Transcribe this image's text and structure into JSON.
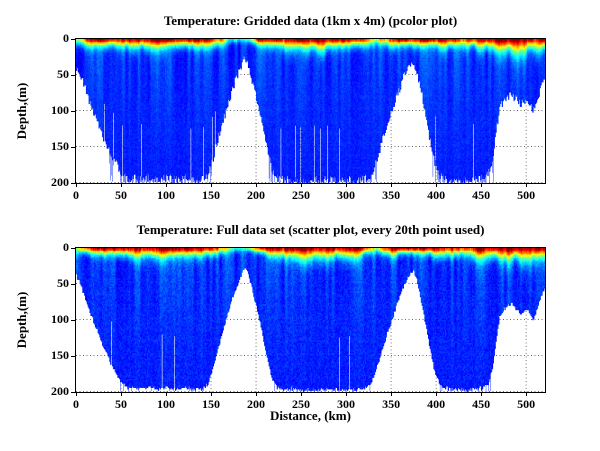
{
  "figure": {
    "background": "#ffffff",
    "frame_color": "#000000",
    "grid_dot_color": "#3a3a3a"
  },
  "text": {
    "xlabel": "Distance, (km)"
  },
  "chart_data": [
    {
      "type": "pcolor",
      "title": "Temperature: Gridded data (1km x 4m) (pcolor plot)",
      "ylabel": "Depth,(m)",
      "xlim": [
        0,
        521
      ],
      "ylim": [
        0,
        200
      ],
      "y_inverted": true,
      "grid": "dotted",
      "legend": "none",
      "colormap": "jet",
      "xticks": [
        0,
        50,
        100,
        150,
        200,
        250,
        300,
        350,
        400,
        450,
        500
      ],
      "yticks": [
        0,
        50,
        100,
        150,
        200
      ],
      "deep_temp": 0.18,
      "seed": 11,
      "bottom_jitter_m": 6,
      "spike_rate": 0.42,
      "gap_rate": 0.05,
      "cell_noise": 0.025,
      "bathymetry_km_m": [
        [
          0,
          38
        ],
        [
          4,
          48
        ],
        [
          8,
          62
        ],
        [
          14,
          85
        ],
        [
          20,
          105
        ],
        [
          26,
          122
        ],
        [
          32,
          142
        ],
        [
          38,
          158
        ],
        [
          44,
          172
        ],
        [
          50,
          185
        ],
        [
          56,
          193
        ],
        [
          62,
          190
        ],
        [
          70,
          194
        ],
        [
          80,
          191
        ],
        [
          90,
          195
        ],
        [
          100,
          192
        ],
        [
          110,
          195
        ],
        [
          120,
          192
        ],
        [
          130,
          195
        ],
        [
          140,
          193
        ],
        [
          146,
          188
        ],
        [
          152,
          165
        ],
        [
          158,
          135
        ],
        [
          164,
          108
        ],
        [
          170,
          82
        ],
        [
          176,
          58
        ],
        [
          181,
          42
        ],
        [
          185,
          30
        ],
        [
          188,
          27
        ],
        [
          191,
          35
        ],
        [
          195,
          55
        ],
        [
          200,
          80
        ],
        [
          205,
          108
        ],
        [
          210,
          140
        ],
        [
          214,
          165
        ],
        [
          218,
          182
        ],
        [
          223,
          192
        ],
        [
          230,
          195
        ],
        [
          240,
          193
        ],
        [
          250,
          196
        ],
        [
          260,
          194
        ],
        [
          270,
          196
        ],
        [
          280,
          194
        ],
        [
          290,
          196
        ],
        [
          300,
          194
        ],
        [
          310,
          196
        ],
        [
          318,
          194
        ],
        [
          326,
          190
        ],
        [
          332,
          172
        ],
        [
          338,
          148
        ],
        [
          344,
          122
        ],
        [
          350,
          100
        ],
        [
          356,
          78
        ],
        [
          362,
          56
        ],
        [
          367,
          42
        ],
        [
          371,
          33
        ],
        [
          374,
          30
        ],
        [
          377,
          38
        ],
        [
          381,
          60
        ],
        [
          385,
          85
        ],
        [
          389,
          112
        ],
        [
          393,
          140
        ],
        [
          397,
          165
        ],
        [
          401,
          182
        ],
        [
          406,
          192
        ],
        [
          415,
          195
        ],
        [
          425,
          193
        ],
        [
          435,
          196
        ],
        [
          445,
          194
        ],
        [
          452,
          192
        ],
        [
          458,
          185
        ],
        [
          463,
          160
        ],
        [
          467,
          120
        ],
        [
          470,
          95
        ],
        [
          474,
          85
        ],
        [
          478,
          80
        ],
        [
          483,
          76
        ],
        [
          488,
          82
        ],
        [
          493,
          90
        ],
        [
          498,
          84
        ],
        [
          503,
          88
        ],
        [
          507,
          98
        ],
        [
          511,
          85
        ],
        [
          515,
          70
        ],
        [
          518,
          60
        ],
        [
          521,
          52
        ]
      ],
      "surface_temp_km_t": [
        [
          0,
          0.52
        ],
        [
          6,
          0.62
        ],
        [
          12,
          0.88
        ],
        [
          20,
          0.95
        ],
        [
          40,
          0.92
        ],
        [
          60,
          0.95
        ],
        [
          90,
          0.97
        ],
        [
          120,
          0.95
        ],
        [
          150,
          0.9
        ],
        [
          160,
          0.75
        ],
        [
          168,
          0.5
        ],
        [
          178,
          0.4
        ],
        [
          186,
          0.38
        ],
        [
          194,
          0.55
        ],
        [
          202,
          0.85
        ],
        [
          210,
          0.92
        ],
        [
          225,
          0.95
        ],
        [
          250,
          0.97
        ],
        [
          270,
          0.98
        ],
        [
          295,
          0.97
        ],
        [
          315,
          0.95
        ],
        [
          325,
          0.7
        ],
        [
          333,
          0.52
        ],
        [
          340,
          0.75
        ],
        [
          350,
          0.9
        ],
        [
          365,
          0.92
        ],
        [
          375,
          0.9
        ],
        [
          385,
          0.92
        ],
        [
          400,
          0.95
        ],
        [
          415,
          0.9
        ],
        [
          428,
          0.8
        ],
        [
          435,
          0.85
        ],
        [
          450,
          0.95
        ],
        [
          465,
          0.97
        ],
        [
          480,
          0.98
        ],
        [
          495,
          0.97
        ],
        [
          510,
          0.96
        ],
        [
          521,
          0.95
        ]
      ],
      "warm_layer_depth_km_m": [
        [
          0,
          6
        ],
        [
          15,
          8
        ],
        [
          30,
          7
        ],
        [
          60,
          9
        ],
        [
          90,
          10
        ],
        [
          120,
          9
        ],
        [
          150,
          7
        ],
        [
          170,
          5
        ],
        [
          185,
          4
        ],
        [
          200,
          6
        ],
        [
          215,
          8
        ],
        [
          235,
          11
        ],
        [
          260,
          13
        ],
        [
          285,
          12
        ],
        [
          300,
          10
        ],
        [
          320,
          8
        ],
        [
          335,
          6
        ],
        [
          350,
          8
        ],
        [
          370,
          7
        ],
        [
          390,
          8
        ],
        [
          410,
          9
        ],
        [
          430,
          8
        ],
        [
          450,
          10
        ],
        [
          470,
          13
        ],
        [
          490,
          14
        ],
        [
          505,
          13
        ],
        [
          521,
          12
        ]
      ]
    },
    {
      "type": "scatter",
      "title": "Temperature: Full data set (scatter plot, every 20th point used)",
      "ylabel": "Depth,(m)",
      "xlim": [
        0,
        521
      ],
      "ylim": [
        0,
        200
      ],
      "y_inverted": true,
      "grid": "dotted",
      "legend": "none",
      "colormap": "jet",
      "xticks": [
        0,
        50,
        100,
        150,
        200,
        250,
        300,
        350,
        400,
        450,
        500
      ],
      "yticks": [
        0,
        50,
        100,
        150,
        200
      ],
      "deep_temp": 0.18,
      "seed": 97,
      "bottom_jitter_m": 2.5,
      "spike_rate": 0.1,
      "gap_rate": 0.02,
      "cell_noise": 0.035,
      "bathymetry_km_m": [
        [
          0,
          38
        ],
        [
          4,
          48
        ],
        [
          8,
          62
        ],
        [
          14,
          85
        ],
        [
          20,
          105
        ],
        [
          26,
          122
        ],
        [
          32,
          142
        ],
        [
          38,
          158
        ],
        [
          44,
          172
        ],
        [
          50,
          185
        ],
        [
          56,
          193
        ],
        [
          62,
          191
        ],
        [
          70,
          194
        ],
        [
          80,
          192
        ],
        [
          90,
          195
        ],
        [
          100,
          193
        ],
        [
          110,
          195
        ],
        [
          120,
          193
        ],
        [
          130,
          195
        ],
        [
          140,
          194
        ],
        [
          146,
          188
        ],
        [
          152,
          165
        ],
        [
          158,
          135
        ],
        [
          164,
          108
        ],
        [
          170,
          82
        ],
        [
          176,
          58
        ],
        [
          181,
          42
        ],
        [
          185,
          30
        ],
        [
          188,
          27
        ],
        [
          191,
          35
        ],
        [
          195,
          55
        ],
        [
          200,
          80
        ],
        [
          205,
          108
        ],
        [
          210,
          140
        ],
        [
          214,
          165
        ],
        [
          218,
          182
        ],
        [
          223,
          192
        ],
        [
          230,
          195
        ],
        [
          240,
          194
        ],
        [
          250,
          196
        ],
        [
          260,
          195
        ],
        [
          270,
          196
        ],
        [
          280,
          195
        ],
        [
          290,
          196
        ],
        [
          300,
          195
        ],
        [
          310,
          196
        ],
        [
          318,
          194
        ],
        [
          326,
          190
        ],
        [
          332,
          172
        ],
        [
          338,
          148
        ],
        [
          344,
          122
        ],
        [
          350,
          100
        ],
        [
          356,
          78
        ],
        [
          362,
          56
        ],
        [
          367,
          42
        ],
        [
          371,
          33
        ],
        [
          374,
          30
        ],
        [
          377,
          38
        ],
        [
          381,
          60
        ],
        [
          385,
          85
        ],
        [
          389,
          112
        ],
        [
          393,
          140
        ],
        [
          397,
          165
        ],
        [
          401,
          182
        ],
        [
          406,
          192
        ],
        [
          415,
          195
        ],
        [
          425,
          194
        ],
        [
          435,
          196
        ],
        [
          445,
          195
        ],
        [
          452,
          193
        ],
        [
          458,
          185
        ],
        [
          463,
          160
        ],
        [
          467,
          120
        ],
        [
          470,
          95
        ],
        [
          474,
          85
        ],
        [
          478,
          80
        ],
        [
          483,
          76
        ],
        [
          488,
          82
        ],
        [
          493,
          90
        ],
        [
          498,
          84
        ],
        [
          503,
          88
        ],
        [
          507,
          98
        ],
        [
          511,
          85
        ],
        [
          515,
          70
        ],
        [
          518,
          60
        ],
        [
          521,
          52
        ]
      ],
      "surface_temp_km_t": [
        [
          0,
          0.52
        ],
        [
          6,
          0.62
        ],
        [
          12,
          0.88
        ],
        [
          20,
          0.95
        ],
        [
          40,
          0.92
        ],
        [
          60,
          0.95
        ],
        [
          90,
          0.97
        ],
        [
          120,
          0.95
        ],
        [
          150,
          0.9
        ],
        [
          160,
          0.75
        ],
        [
          168,
          0.5
        ],
        [
          178,
          0.4
        ],
        [
          186,
          0.38
        ],
        [
          194,
          0.55
        ],
        [
          202,
          0.85
        ],
        [
          210,
          0.92
        ],
        [
          225,
          0.95
        ],
        [
          250,
          0.97
        ],
        [
          270,
          0.98
        ],
        [
          295,
          0.97
        ],
        [
          315,
          0.95
        ],
        [
          325,
          0.7
        ],
        [
          333,
          0.52
        ],
        [
          340,
          0.75
        ],
        [
          350,
          0.9
        ],
        [
          365,
          0.92
        ],
        [
          375,
          0.9
        ],
        [
          385,
          0.92
        ],
        [
          400,
          0.95
        ],
        [
          415,
          0.9
        ],
        [
          428,
          0.8
        ],
        [
          435,
          0.85
        ],
        [
          450,
          0.95
        ],
        [
          465,
          0.97
        ],
        [
          480,
          0.98
        ],
        [
          495,
          0.97
        ],
        [
          510,
          0.96
        ],
        [
          521,
          0.95
        ]
      ],
      "warm_layer_depth_km_m": [
        [
          0,
          6
        ],
        [
          15,
          8
        ],
        [
          30,
          7
        ],
        [
          60,
          9
        ],
        [
          90,
          10
        ],
        [
          120,
          9
        ],
        [
          150,
          7
        ],
        [
          170,
          5
        ],
        [
          185,
          4
        ],
        [
          200,
          6
        ],
        [
          215,
          8
        ],
        [
          235,
          11
        ],
        [
          260,
          13
        ],
        [
          285,
          12
        ],
        [
          300,
          10
        ],
        [
          320,
          8
        ],
        [
          335,
          6
        ],
        [
          350,
          8
        ],
        [
          370,
          7
        ],
        [
          390,
          8
        ],
        [
          410,
          9
        ],
        [
          430,
          8
        ],
        [
          450,
          10
        ],
        [
          470,
          13
        ],
        [
          490,
          14
        ],
        [
          505,
          13
        ],
        [
          521,
          12
        ]
      ]
    }
  ]
}
